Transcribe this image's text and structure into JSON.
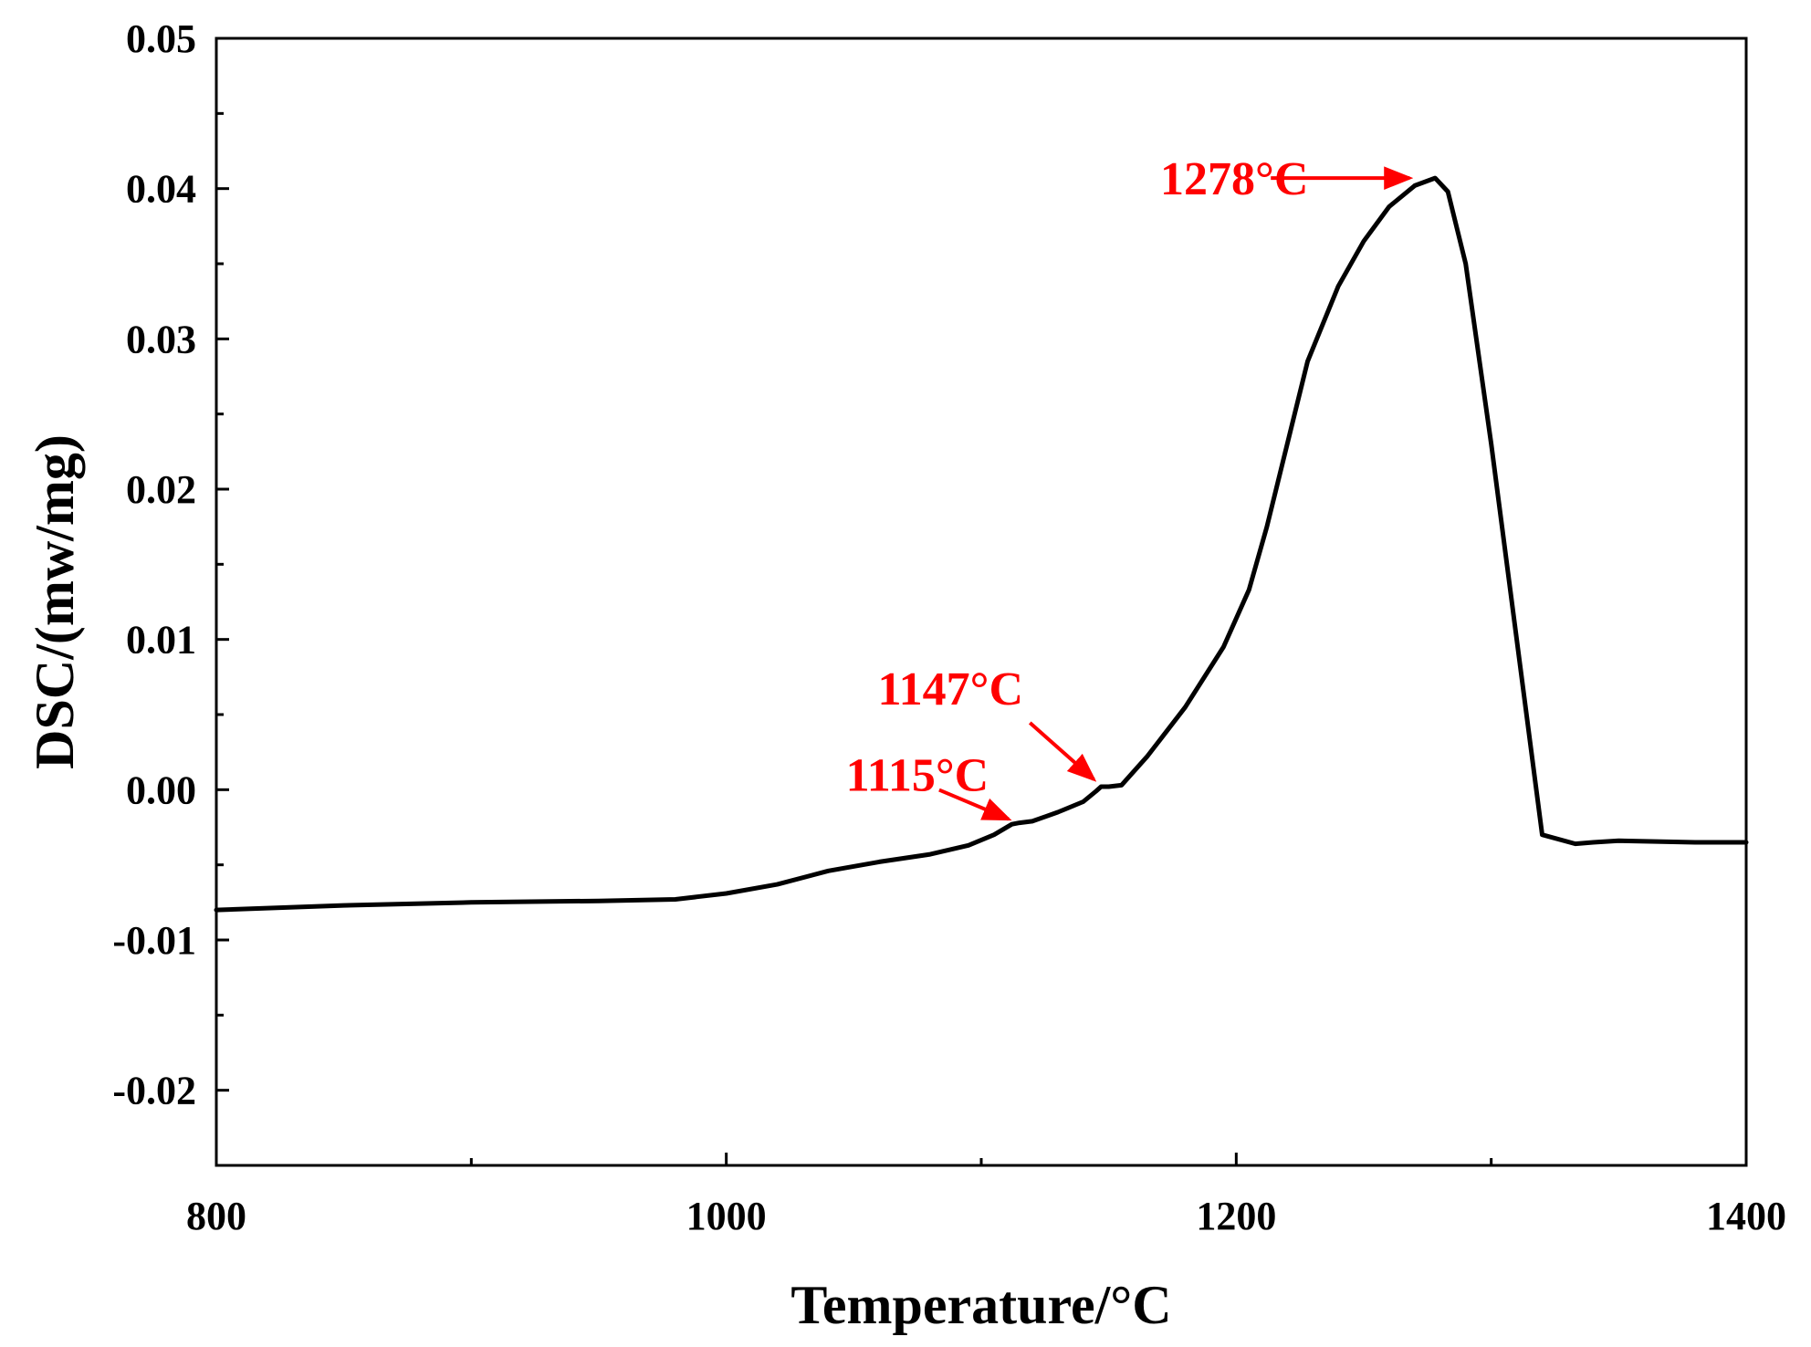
{
  "chart_data": {
    "type": "line",
    "title": "",
    "xlabel": "Temperature/°C",
    "ylabel": "DSC/(mw/mg)",
    "xlim": [
      800,
      1400
    ],
    "ylim": [
      -0.025,
      0.05
    ],
    "x_ticks": [
      800,
      1000,
      1200,
      1400
    ],
    "x_tick_labels": [
      "800",
      "1000",
      "1200",
      "1400"
    ],
    "x_minor_ticks": [
      900,
      1100,
      1300
    ],
    "y_ticks": [
      -0.02,
      -0.01,
      0.0,
      0.01,
      0.02,
      0.03,
      0.04,
      0.05
    ],
    "y_tick_labels": [
      "-0.02",
      "-0.01",
      "0.00",
      "0.01",
      "0.02",
      "0.03",
      "0.04",
      "0.05"
    ],
    "y_minor_ticks": [
      -0.025,
      -0.015,
      -0.005,
      0.005,
      0.015,
      0.025,
      0.035,
      0.045
    ],
    "grid": false,
    "line_color": "#000000",
    "annotation_color": "#ff0000",
    "series": [
      {
        "name": "DSC",
        "x": [
          800,
          850,
          900,
          950,
          980,
          1000,
          1020,
          1040,
          1060,
          1080,
          1095,
          1105,
          1112,
          1115,
          1120,
          1130,
          1140,
          1145,
          1147,
          1150,
          1155,
          1165,
          1180,
          1195,
          1205,
          1212,
          1220,
          1228,
          1240,
          1250,
          1260,
          1270,
          1278,
          1283,
          1290,
          1300,
          1310,
          1320,
          1333,
          1340,
          1350,
          1380,
          1400
        ],
        "y": [
          -0.008,
          -0.0077,
          -0.0075,
          -0.0074,
          -0.0073,
          -0.0069,
          -0.0063,
          -0.0054,
          -0.0048,
          -0.0043,
          -0.0037,
          -0.003,
          -0.0023,
          -0.0022,
          -0.0021,
          -0.0015,
          -0.0008,
          -0.0001,
          0.0002,
          0.0002,
          0.0003,
          0.0022,
          0.0055,
          0.0095,
          0.0133,
          0.0175,
          0.023,
          0.0285,
          0.0335,
          0.0365,
          0.0388,
          0.0402,
          0.0407,
          0.0398,
          0.035,
          0.023,
          0.01,
          -0.003,
          -0.0036,
          -0.0035,
          -0.0034,
          -0.0035,
          -0.0035
        ]
      }
    ],
    "annotations": [
      {
        "text": "1278°C",
        "x": 1278,
        "y": 0.0407
      },
      {
        "text": "1147°C",
        "x": 1147,
        "y": 0.0002
      },
      {
        "text": "1115°C",
        "x": 1115,
        "y": -0.0022
      }
    ]
  }
}
